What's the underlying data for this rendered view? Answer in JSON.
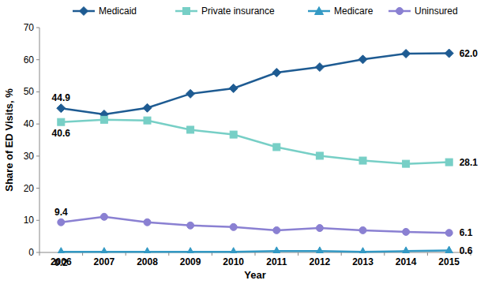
{
  "chart_data": {
    "type": "line",
    "x_label": "Year",
    "y_label": "Share of ED Visits, %",
    "categories": [
      "2006",
      "2007",
      "2008",
      "2009",
      "2010",
      "2011",
      "2012",
      "2013",
      "2014",
      "2015"
    ],
    "ylim": [
      0,
      70
    ],
    "yticks": [
      0,
      10,
      20,
      30,
      40,
      50,
      60,
      70
    ],
    "grid": false,
    "legend": "top",
    "data_labels": true,
    "series": [
      {
        "name": "Medicaid",
        "color": "#1e5b92",
        "marker": "diamond",
        "values": [
          44.9,
          43.0,
          45.0,
          49.4,
          51.1,
          56.0,
          57.7,
          60.1,
          61.9,
          62.0
        ],
        "value_labels": [
          "44.9",
          null,
          null,
          null,
          null,
          null,
          null,
          null,
          null,
          "62.0"
        ]
      },
      {
        "name": "Private insurance",
        "color": "#77cfc6",
        "marker": "square",
        "values": [
          40.6,
          41.3,
          41.1,
          38.2,
          36.7,
          32.8,
          30.1,
          28.6,
          27.6,
          28.1
        ],
        "value_labels": [
          "40.6",
          null,
          null,
          null,
          null,
          null,
          null,
          null,
          null,
          "28.1"
        ]
      },
      {
        "name": "Medicare",
        "color": "#3399c4",
        "marker": "triangle",
        "values": [
          0.2,
          0.2,
          0.2,
          0.2,
          0.2,
          0.4,
          0.4,
          0.2,
          0.4,
          0.6
        ],
        "value_labels": [
          "0.2",
          null,
          null,
          null,
          null,
          null,
          null,
          null,
          null,
          "0.6"
        ]
      },
      {
        "name": "Uninsured",
        "color": "#8a80d2",
        "marker": "circle",
        "values": [
          9.4,
          11.1,
          9.4,
          8.4,
          7.9,
          6.9,
          7.6,
          6.9,
          6.4,
          6.1
        ],
        "value_labels": [
          "9.4",
          null,
          null,
          null,
          null,
          null,
          null,
          null,
          null,
          "6.1"
        ]
      }
    ]
  }
}
